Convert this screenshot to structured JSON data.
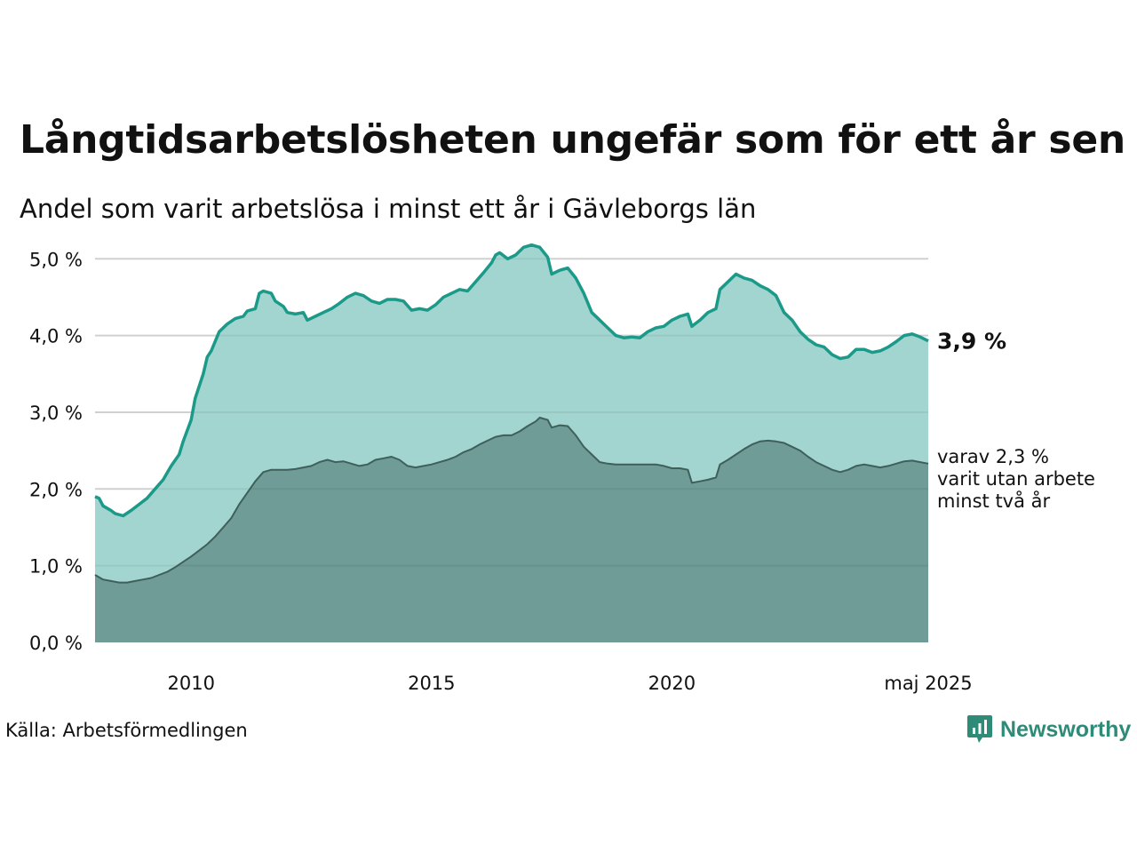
{
  "title": "Långtidsarbetslösheten ungefär som för ett år sen",
  "subtitle": "Andel som varit arbetslösa i minst ett år i Gävleborgs län",
  "source": "Källa: Arbetsförmedlingen",
  "brand": {
    "name": "Newsworthy",
    "icon": "newsworthy-logo-icon",
    "color": "#2d8b78"
  },
  "colors": {
    "upper_fill": "#a3d5d0",
    "upper_line": "#1b9a89",
    "lower_fill": "#6f9c96",
    "lower_line": "#3f5f5b",
    "grid": "#dddddd"
  },
  "chart_data": {
    "type": "area",
    "x_start": "2008-01",
    "x_end": "2025-05",
    "xlim": [
      "2008-01",
      "2025-05"
    ],
    "ylim": [
      0,
      5.2
    ],
    "y_ticks": [
      0,
      1,
      2,
      3,
      4,
      5
    ],
    "y_tick_labels": [
      "0,0 %",
      "1,0 %",
      "2,0 %",
      "3,0 %",
      "4,0 %",
      "5,0 %"
    ],
    "x_ticks": [
      "2010-01",
      "2015-01",
      "2020-01",
      "2025-05"
    ],
    "x_tick_labels": [
      "2010",
      "2015",
      "2020",
      "maj 2025"
    ],
    "grid": true,
    "series": [
      {
        "key": "total",
        "points": [
          [
            "2008-01",
            1.9
          ],
          [
            "2008-02",
            1.88
          ],
          [
            "2008-03",
            1.78
          ],
          [
            "2008-05",
            1.72
          ],
          [
            "2008-06",
            1.68
          ],
          [
            "2008-08",
            1.65
          ],
          [
            "2008-10",
            1.72
          ],
          [
            "2008-12",
            1.8
          ],
          [
            "2009-02",
            1.88
          ],
          [
            "2009-04",
            2.0
          ],
          [
            "2009-06",
            2.12
          ],
          [
            "2009-08",
            2.3
          ],
          [
            "2009-10",
            2.45
          ],
          [
            "2009-11",
            2.62
          ],
          [
            "2010-01",
            2.9
          ],
          [
            "2010-02",
            3.18
          ],
          [
            "2010-04",
            3.5
          ],
          [
            "2010-05",
            3.72
          ],
          [
            "2010-06",
            3.8
          ],
          [
            "2010-08",
            4.05
          ],
          [
            "2010-10",
            4.15
          ],
          [
            "2010-12",
            4.22
          ],
          [
            "2011-02",
            4.25
          ],
          [
            "2011-03",
            4.32
          ],
          [
            "2011-05",
            4.35
          ],
          [
            "2011-06",
            4.55
          ],
          [
            "2011-07",
            4.58
          ],
          [
            "2011-09",
            4.55
          ],
          [
            "2011-10",
            4.45
          ],
          [
            "2011-12",
            4.38
          ],
          [
            "2012-01",
            4.3
          ],
          [
            "2012-03",
            4.28
          ],
          [
            "2012-05",
            4.3
          ],
          [
            "2012-06",
            4.2
          ],
          [
            "2012-08",
            4.25
          ],
          [
            "2012-10",
            4.3
          ],
          [
            "2012-12",
            4.35
          ],
          [
            "2013-02",
            4.42
          ],
          [
            "2013-04",
            4.5
          ],
          [
            "2013-06",
            4.55
          ],
          [
            "2013-08",
            4.52
          ],
          [
            "2013-10",
            4.45
          ],
          [
            "2013-12",
            4.42
          ],
          [
            "2014-02",
            4.47
          ],
          [
            "2014-04",
            4.47
          ],
          [
            "2014-06",
            4.45
          ],
          [
            "2014-08",
            4.33
          ],
          [
            "2014-10",
            4.35
          ],
          [
            "2014-12",
            4.33
          ],
          [
            "2015-02",
            4.4
          ],
          [
            "2015-04",
            4.5
          ],
          [
            "2015-06",
            4.55
          ],
          [
            "2015-08",
            4.6
          ],
          [
            "2015-10",
            4.58
          ],
          [
            "2015-12",
            4.7
          ],
          [
            "2016-02",
            4.82
          ],
          [
            "2016-04",
            4.95
          ],
          [
            "2016-05",
            5.05
          ],
          [
            "2016-06",
            5.08
          ],
          [
            "2016-08",
            5.0
          ],
          [
            "2016-10",
            5.05
          ],
          [
            "2016-12",
            5.15
          ],
          [
            "2017-02",
            5.18
          ],
          [
            "2017-04",
            5.15
          ],
          [
            "2017-06",
            5.02
          ],
          [
            "2017-07",
            4.8
          ],
          [
            "2017-09",
            4.85
          ],
          [
            "2017-11",
            4.88
          ],
          [
            "2018-01",
            4.75
          ],
          [
            "2018-03",
            4.55
          ],
          [
            "2018-05",
            4.3
          ],
          [
            "2018-07",
            4.2
          ],
          [
            "2018-09",
            4.1
          ],
          [
            "2018-11",
            4.0
          ],
          [
            "2019-01",
            3.97
          ],
          [
            "2019-03",
            3.98
          ],
          [
            "2019-05",
            3.97
          ],
          [
            "2019-07",
            4.05
          ],
          [
            "2019-09",
            4.1
          ],
          [
            "2019-11",
            4.12
          ],
          [
            "2020-01",
            4.2
          ],
          [
            "2020-03",
            4.25
          ],
          [
            "2020-05",
            4.28
          ],
          [
            "2020-06",
            4.12
          ],
          [
            "2020-08",
            4.2
          ],
          [
            "2020-10",
            4.3
          ],
          [
            "2020-12",
            4.35
          ],
          [
            "2021-01",
            4.6
          ],
          [
            "2021-03",
            4.7
          ],
          [
            "2021-05",
            4.8
          ],
          [
            "2021-07",
            4.75
          ],
          [
            "2021-09",
            4.72
          ],
          [
            "2021-11",
            4.65
          ],
          [
            "2022-01",
            4.6
          ],
          [
            "2022-03",
            4.52
          ],
          [
            "2022-05",
            4.3
          ],
          [
            "2022-07",
            4.2
          ],
          [
            "2022-09",
            4.05
          ],
          [
            "2022-11",
            3.95
          ],
          [
            "2023-01",
            3.88
          ],
          [
            "2023-03",
            3.85
          ],
          [
            "2023-05",
            3.75
          ],
          [
            "2023-07",
            3.7
          ],
          [
            "2023-09",
            3.72
          ],
          [
            "2023-11",
            3.82
          ],
          [
            "2024-01",
            3.82
          ],
          [
            "2024-03",
            3.78
          ],
          [
            "2024-05",
            3.8
          ],
          [
            "2024-07",
            3.85
          ],
          [
            "2024-09",
            3.92
          ],
          [
            "2024-11",
            4.0
          ],
          [
            "2025-01",
            4.02
          ],
          [
            "2025-03",
            3.98
          ],
          [
            "2025-05",
            3.93
          ]
        ]
      },
      {
        "key": "two_years",
        "points": [
          [
            "2008-01",
            0.88
          ],
          [
            "2008-03",
            0.82
          ],
          [
            "2008-05",
            0.8
          ],
          [
            "2008-07",
            0.78
          ],
          [
            "2008-09",
            0.78
          ],
          [
            "2008-11",
            0.8
          ],
          [
            "2009-01",
            0.82
          ],
          [
            "2009-03",
            0.84
          ],
          [
            "2009-05",
            0.88
          ],
          [
            "2009-07",
            0.92
          ],
          [
            "2009-09",
            0.98
          ],
          [
            "2009-11",
            1.05
          ],
          [
            "2010-01",
            1.12
          ],
          [
            "2010-03",
            1.2
          ],
          [
            "2010-05",
            1.28
          ],
          [
            "2010-07",
            1.38
          ],
          [
            "2010-09",
            1.5
          ],
          [
            "2010-11",
            1.62
          ],
          [
            "2011-01",
            1.8
          ],
          [
            "2011-03",
            1.95
          ],
          [
            "2011-05",
            2.1
          ],
          [
            "2011-07",
            2.22
          ],
          [
            "2011-09",
            2.25
          ],
          [
            "2011-11",
            2.25
          ],
          [
            "2012-01",
            2.25
          ],
          [
            "2012-03",
            2.26
          ],
          [
            "2012-05",
            2.28
          ],
          [
            "2012-07",
            2.3
          ],
          [
            "2012-09",
            2.35
          ],
          [
            "2012-11",
            2.38
          ],
          [
            "2013-01",
            2.35
          ],
          [
            "2013-03",
            2.36
          ],
          [
            "2013-05",
            2.33
          ],
          [
            "2013-07",
            2.3
          ],
          [
            "2013-09",
            2.32
          ],
          [
            "2013-11",
            2.38
          ],
          [
            "2014-01",
            2.4
          ],
          [
            "2014-03",
            2.42
          ],
          [
            "2014-05",
            2.38
          ],
          [
            "2014-07",
            2.3
          ],
          [
            "2014-09",
            2.28
          ],
          [
            "2014-11",
            2.3
          ],
          [
            "2015-01",
            2.32
          ],
          [
            "2015-03",
            2.35
          ],
          [
            "2015-05",
            2.38
          ],
          [
            "2015-07",
            2.42
          ],
          [
            "2015-09",
            2.48
          ],
          [
            "2015-11",
            2.52
          ],
          [
            "2016-01",
            2.58
          ],
          [
            "2016-03",
            2.63
          ],
          [
            "2016-05",
            2.68
          ],
          [
            "2016-07",
            2.7
          ],
          [
            "2016-09",
            2.7
          ],
          [
            "2016-11",
            2.75
          ],
          [
            "2017-01",
            2.82
          ],
          [
            "2017-03",
            2.88
          ],
          [
            "2017-04",
            2.93
          ],
          [
            "2017-06",
            2.9
          ],
          [
            "2017-07",
            2.8
          ],
          [
            "2017-09",
            2.83
          ],
          [
            "2017-11",
            2.82
          ],
          [
            "2018-01",
            2.7
          ],
          [
            "2018-03",
            2.55
          ],
          [
            "2018-05",
            2.45
          ],
          [
            "2018-07",
            2.35
          ],
          [
            "2018-09",
            2.33
          ],
          [
            "2018-11",
            2.32
          ],
          [
            "2019-01",
            2.32
          ],
          [
            "2019-03",
            2.32
          ],
          [
            "2019-05",
            2.32
          ],
          [
            "2019-07",
            2.32
          ],
          [
            "2019-09",
            2.32
          ],
          [
            "2019-11",
            2.3
          ],
          [
            "2020-01",
            2.27
          ],
          [
            "2020-03",
            2.27
          ],
          [
            "2020-05",
            2.25
          ],
          [
            "2020-06",
            2.08
          ],
          [
            "2020-08",
            2.1
          ],
          [
            "2020-10",
            2.12
          ],
          [
            "2020-12",
            2.15
          ],
          [
            "2021-01",
            2.32
          ],
          [
            "2021-03",
            2.38
          ],
          [
            "2021-05",
            2.45
          ],
          [
            "2021-07",
            2.52
          ],
          [
            "2021-09",
            2.58
          ],
          [
            "2021-11",
            2.62
          ],
          [
            "2022-01",
            2.63
          ],
          [
            "2022-03",
            2.62
          ],
          [
            "2022-05",
            2.6
          ],
          [
            "2022-07",
            2.55
          ],
          [
            "2022-09",
            2.5
          ],
          [
            "2022-11",
            2.42
          ],
          [
            "2023-01",
            2.35
          ],
          [
            "2023-03",
            2.3
          ],
          [
            "2023-05",
            2.25
          ],
          [
            "2023-07",
            2.22
          ],
          [
            "2023-09",
            2.25
          ],
          [
            "2023-11",
            2.3
          ],
          [
            "2024-01",
            2.32
          ],
          [
            "2024-03",
            2.3
          ],
          [
            "2024-05",
            2.28
          ],
          [
            "2024-07",
            2.3
          ],
          [
            "2024-09",
            2.33
          ],
          [
            "2024-11",
            2.36
          ],
          [
            "2025-01",
            2.37
          ],
          [
            "2025-03",
            2.35
          ],
          [
            "2025-05",
            2.33
          ]
        ]
      }
    ],
    "end_label": "3,9 %",
    "annotation_lines": [
      "varav 2,3 %",
      "varit utan arbete",
      "minst två år"
    ]
  }
}
